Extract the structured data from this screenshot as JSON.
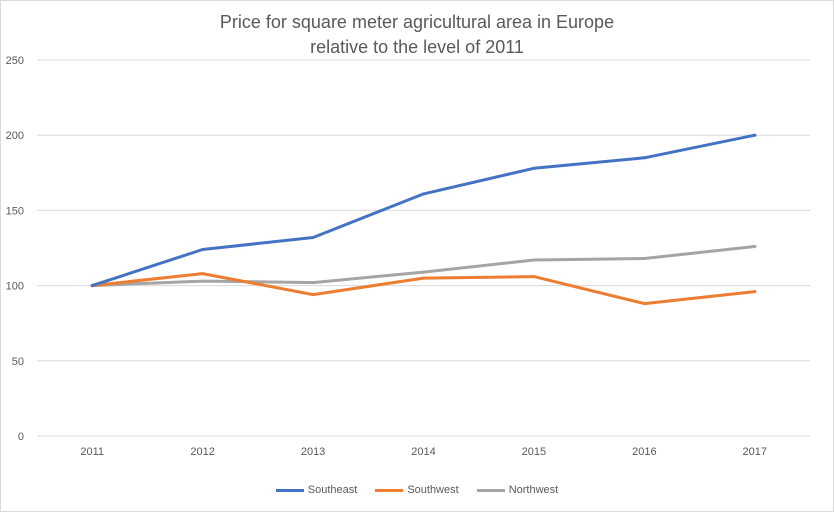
{
  "chart_data": {
    "type": "line",
    "title_line1": "Price for square meter agricultural area in Europe",
    "title_line2": "relative to the level of 2011",
    "categories": [
      "2011",
      "2012",
      "2013",
      "2014",
      "2015",
      "2016",
      "2017"
    ],
    "yticks": [
      "0",
      "50",
      "100",
      "150",
      "200",
      "250"
    ],
    "ylim": [
      0,
      250
    ],
    "grid": true,
    "legend_position": "bottom",
    "series": [
      {
        "name": "Southeast",
        "color": "#4472c4",
        "values": [
          100,
          124,
          132,
          161,
          178,
          185,
          200
        ]
      },
      {
        "name": "Southwest",
        "color": "#ed7d31",
        "values": [
          100,
          108,
          94,
          105,
          106,
          88,
          96
        ]
      },
      {
        "name": "Northwest",
        "color": "#a5a5a5",
        "values": [
          100,
          103,
          102,
          109,
          117,
          118,
          126
        ]
      }
    ]
  }
}
